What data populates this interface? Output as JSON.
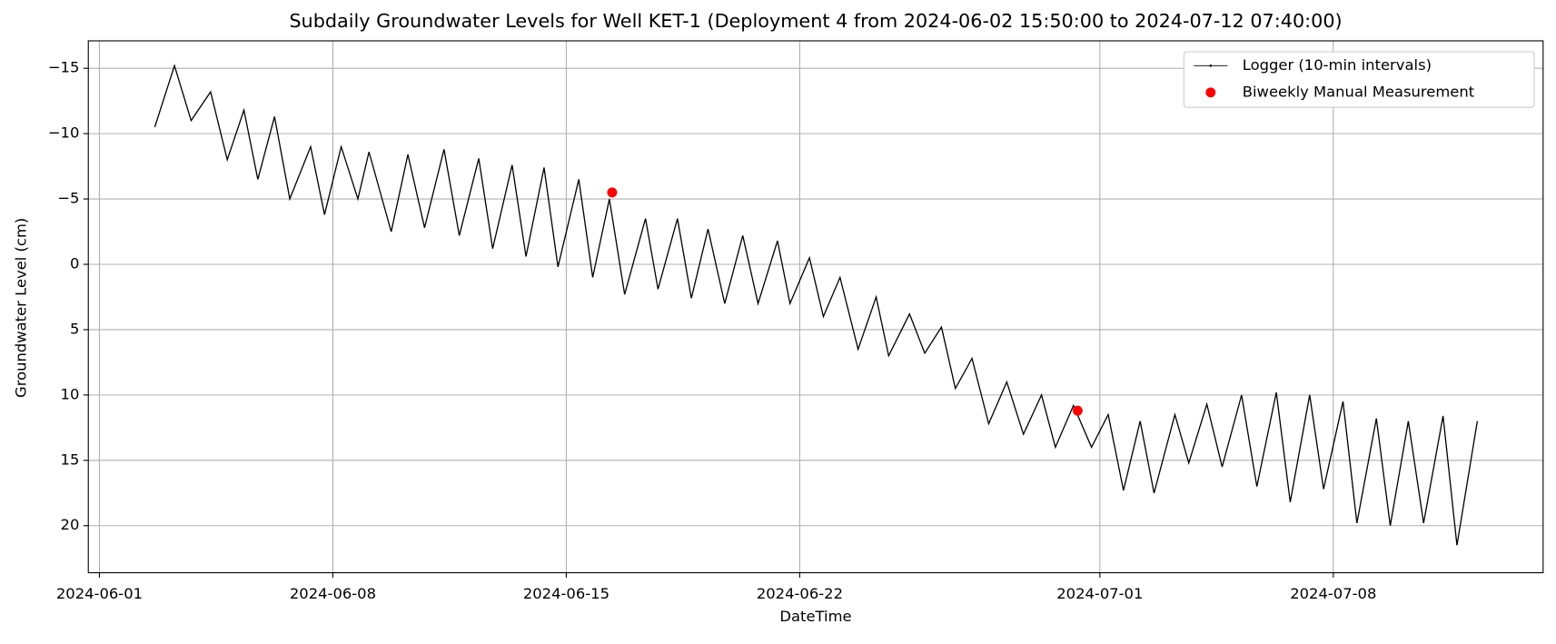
{
  "chart_data": {
    "type": "line",
    "title": "Subdaily Groundwater Levels for Well KET-1 (Deployment 4 from 2024-06-02 15:50:00 to 2024-07-12 07:40:00)",
    "x_label": "DateTime",
    "y_label": "Groundwater Level (cm)",
    "xlim": [
      "2024-05-31T16:00",
      "2024-07-14T07:00"
    ],
    "xticks": [
      "2024-06-01",
      "2024-06-08",
      "2024-06-15",
      "2024-06-22",
      "2024-07-01",
      "2024-07-08"
    ],
    "ylim": [
      -17.1,
      23.6
    ],
    "y_inverted": true,
    "yticks": [
      {
        "value": -15,
        "label": "−15"
      },
      {
        "value": -10,
        "label": "−10"
      },
      {
        "value": -5,
        "label": "−5"
      },
      0,
      5,
      10,
      15,
      20
    ],
    "grid": true,
    "legend": "upper right",
    "series": [
      {
        "name": "Logger (10-min intervals)",
        "type": "line",
        "color": "#000000",
        "x": [
          "2024-06-02T15:50",
          "2024-06-03T06:00",
          "2024-06-03T18:00",
          "2024-06-04T08:00",
          "2024-06-04T20:00",
          "2024-06-05T08:00",
          "2024-06-05T18:00",
          "2024-06-06T06:00",
          "2024-06-06T17:00",
          "2024-06-07T08:00",
          "2024-06-07T18:00",
          "2024-06-08T06:00",
          "2024-06-08T18:00",
          "2024-06-09T02:00",
          "2024-06-09T18:00",
          "2024-06-10T06:00",
          "2024-06-10T18:00",
          "2024-06-11T08:00",
          "2024-06-11T19:00",
          "2024-06-12T09:00",
          "2024-06-12T19:00",
          "2024-06-13T09:00",
          "2024-06-13T19:00",
          "2024-06-14T08:00",
          "2024-06-14T18:00",
          "2024-06-15T09:00",
          "2024-06-15T19:00",
          "2024-06-16T07:00",
          "2024-06-16T18:00",
          "2024-06-17T09:00",
          "2024-06-17T18:00",
          "2024-06-18T08:00",
          "2024-06-18T18:00",
          "2024-06-19T06:00",
          "2024-06-19T18:00",
          "2024-06-20T07:00",
          "2024-06-20T18:00",
          "2024-06-21T08:00",
          "2024-06-21T17:00",
          "2024-06-22T07:00",
          "2024-06-22T17:00",
          "2024-06-23T05:00",
          "2024-06-23T18:00",
          "2024-06-24T07:00",
          "2024-06-24T16:00",
          "2024-06-25T07:00",
          "2024-06-25T18:00",
          "2024-06-26T06:00",
          "2024-06-26T16:00",
          "2024-06-27T04:00",
          "2024-06-27T16:00",
          "2024-06-28T05:00",
          "2024-06-28T17:00",
          "2024-06-29T06:00",
          "2024-06-29T16:00",
          "2024-06-30T05:00",
          "2024-06-30T18:00",
          "2024-07-01T06:00",
          "2024-07-01T17:00",
          "2024-07-02T05:00",
          "2024-07-02T15:00",
          "2024-07-03T06:00",
          "2024-07-03T16:00",
          "2024-07-04T05:00",
          "2024-07-04T16:00",
          "2024-07-05T06:00",
          "2024-07-05T17:00",
          "2024-07-06T07:00",
          "2024-07-06T17:00",
          "2024-07-07T07:00",
          "2024-07-07T17:00",
          "2024-07-08T07:00",
          "2024-07-08T17:00",
          "2024-07-09T07:00",
          "2024-07-09T17:00",
          "2024-07-10T06:00",
          "2024-07-10T17:00",
          "2024-07-11T07:00",
          "2024-07-11T17:00",
          "2024-07-12T07:40"
        ],
        "values": [
          -10.5,
          -15.2,
          -11.0,
          -13.2,
          -8.0,
          -11.8,
          -6.5,
          -11.3,
          -5.0,
          -9.0,
          -3.8,
          -9.0,
          -5.0,
          -8.6,
          -2.5,
          -8.4,
          -2.8,
          -8.8,
          -2.2,
          -8.1,
          -1.2,
          -7.6,
          -0.6,
          -7.4,
          0.2,
          -6.5,
          1.0,
          -5.0,
          2.3,
          -3.5,
          1.9,
          -3.5,
          2.6,
          -2.7,
          3.0,
          -2.2,
          3.0,
          -1.8,
          3.0,
          -0.5,
          4.0,
          1.0,
          6.5,
          2.5,
          7.0,
          3.8,
          6.8,
          4.8,
          9.5,
          7.2,
          12.2,
          9.0,
          13.0,
          10.0,
          14.0,
          10.8,
          14.0,
          11.5,
          17.3,
          12.0,
          17.5,
          11.5,
          15.2,
          10.7,
          15.5,
          10.0,
          17.0,
          9.8,
          18.2,
          10.0,
          17.2,
          10.5,
          19.8,
          11.8,
          20.0,
          12.0,
          19.8,
          11.6,
          21.5,
          12.0
        ]
      },
      {
        "name": "Biweekly Manual Measurement",
        "type": "scatter",
        "color": "#ff0000",
        "x": [
          "2024-06-16T09:00",
          "2024-06-30T08:00"
        ],
        "values": [
          -5.5,
          11.2
        ]
      }
    ]
  }
}
